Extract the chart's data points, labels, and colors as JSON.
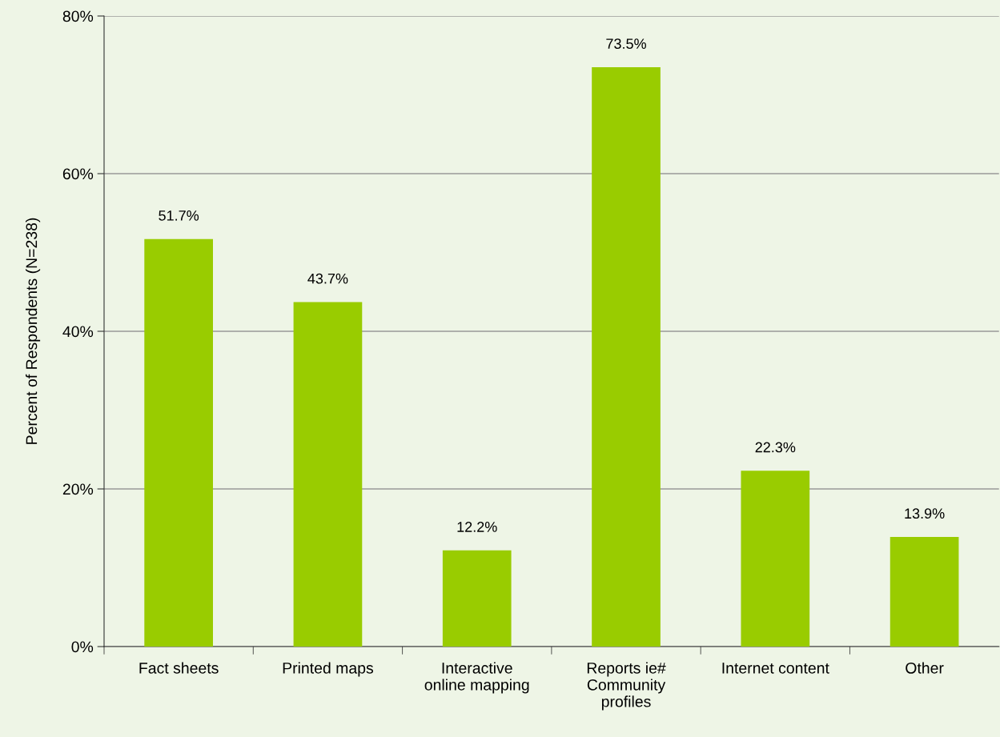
{
  "chart_data": {
    "type": "bar",
    "ylabel": "Percent of Respondents (N=238)",
    "categories": [
      "Fact sheets",
      "Printed maps",
      "Interactive\nonline mapping",
      "Reports ie#\nCommunity\nprofiles",
      "Internet content",
      "Other"
    ],
    "values": [
      51.7,
      43.7,
      12.2,
      73.5,
      22.3,
      13.9
    ],
    "value_labels": [
      "51.7%",
      "43.7%",
      "12.2%",
      "73.5%",
      "22.3%",
      "13.9%"
    ],
    "color": "#99cc00",
    "ylim": [
      0,
      80
    ],
    "yticks": [
      {
        "value": 0,
        "label": "0%"
      },
      {
        "value": 20,
        "label": "20%"
      },
      {
        "value": 40,
        "label": "40%"
      },
      {
        "value": 60,
        "label": "60%"
      },
      {
        "value": 80,
        "label": "80%"
      }
    ],
    "grid": "y"
  }
}
